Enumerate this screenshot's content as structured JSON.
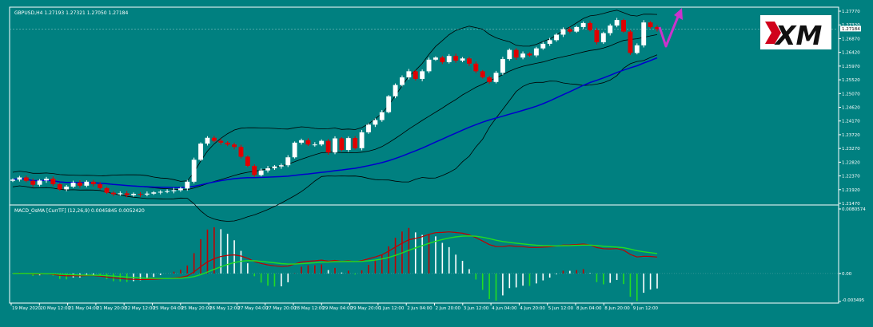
{
  "colors": {
    "background": "#008080",
    "frame": "#ffffff",
    "bull": "#ffffff",
    "bear": "#e00000",
    "band": "#000000",
    "ma": "#0000cc",
    "macd_line": "#c00000",
    "signal_line": "#22dd22",
    "hist_pos_up": "#c00000",
    "hist_pos_down": "#ffffff",
    "hist_neg_down": "#22dd22",
    "hist_neg_up": "#ffffff",
    "arrow": "#cc33cc",
    "logo_bg": "#ffffff",
    "logo_red": "#d0021b",
    "logo_dark": "#111111"
  },
  "header": {
    "symbol_line": "GBPUSD,H4  1.27193 1.27321 1.27050 1.27184"
  },
  "macd": {
    "label": "MACD_OsMA [CurrTF] (12,26,9) 0.0045845 0.0052420"
  },
  "logo": {
    "icon": "xm-logo",
    "text": "XM"
  },
  "chart_data": {
    "type": "candlestick",
    "symbol": "GBPUSD",
    "timeframe": "H4",
    "price_axis": {
      "ticks": [
        "1.27770",
        "1.27320",
        "1.26870",
        "1.26420",
        "1.25970",
        "1.25520",
        "1.25070",
        "1.24620",
        "1.24170",
        "1.23720",
        "1.23270",
        "1.22820",
        "1.22370",
        "1.21920",
        "1.21470"
      ],
      "range": [
        1.2147,
        1.2777
      ],
      "current_price": "1.27184"
    },
    "time_axis": {
      "ticks": [
        "19 May 2020",
        "20 May 12:00",
        "21 May 04:00",
        "21 May 20:00",
        "22 May 12:00",
        "25 May 04:00",
        "25 May 20:00",
        "26 May 12:00",
        "27 May 04:00",
        "27 May 20:00",
        "28 May 12:00",
        "29 May 04:00",
        "29 May 20:00",
        "1 Jun 12:00",
        "2 Jun 04:00",
        "2 Jun 20:00",
        "3 Jun 12:00",
        "4 Jun 04:00",
        "4 Jun 20:00",
        "5 Jun 12:00",
        "8 Jun 04:00",
        "8 Jun 20:00",
        "9 Jun 12:00"
      ]
    },
    "candles_close": [
      1.2225,
      1.2232,
      1.2221,
      1.2208,
      1.2222,
      1.2228,
      1.221,
      1.2193,
      1.2202,
      1.2215,
      1.2205,
      1.2218,
      1.221,
      1.2197,
      1.2182,
      1.2177,
      1.218,
      1.2174,
      1.2178,
      1.2176,
      1.2179,
      1.2183,
      1.2185,
      1.2187,
      1.219,
      1.2196,
      1.2218,
      1.229,
      1.2343,
      1.2362,
      1.2352,
      1.2346,
      1.234,
      1.2332,
      1.23,
      1.227,
      1.224,
      1.2255,
      1.2262,
      1.2268,
      1.2272,
      1.2298,
      1.2346,
      1.2354,
      1.234,
      1.234,
      1.2352,
      1.2314,
      1.236,
      1.2322,
      1.2361,
      1.2328,
      1.238,
      1.2405,
      1.242,
      1.2446,
      1.2498,
      1.2535,
      1.256,
      1.258,
      1.2555,
      1.258,
      1.2618,
      1.2625,
      1.261,
      1.263,
      1.2615,
      1.2622,
      1.2605,
      1.258,
      1.256,
      1.2545,
      1.2575,
      1.262,
      1.265,
      1.2625,
      1.2638,
      1.2632,
      1.2655,
      1.267,
      1.2682,
      1.27,
      1.2718,
      1.271,
      1.2725,
      1.2738,
      1.2715,
      1.2675,
      1.2705,
      1.273,
      1.2748,
      1.271,
      1.264,
      1.2665,
      1.274,
      1.2725,
      1.2718
    ],
    "indicators": {
      "bollinger_bands": true,
      "moving_average": "blue",
      "macd": {
        "fast": 12,
        "slow": 26,
        "signal": 9,
        "macd": 0.0045845,
        "signal_value": 0.005242
      }
    },
    "macd_axis": {
      "ticks": [
        "0.0080574",
        "0.00",
        "-0.003495"
      ],
      "range": [
        -0.003495,
        0.0080574
      ]
    },
    "annotation": "projected dip then rise (arrow)"
  }
}
